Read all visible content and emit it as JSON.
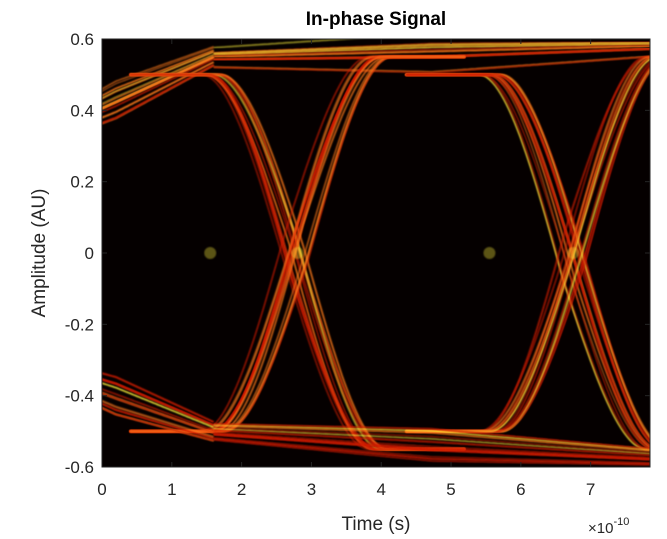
{
  "chart_data": {
    "type": "heatmap",
    "subtype": "eye-diagram density",
    "title": "In-phase Signal",
    "xlabel": "Time (s)",
    "ylabel": "Amplitude (AU)",
    "x_multiplier_base": "×10",
    "x_multiplier_exp": "-10",
    "xlim": [
      0,
      7.85
    ],
    "ylim": [
      -0.6,
      0.6
    ],
    "x_ticks": [
      0,
      1,
      2,
      3,
      4,
      5,
      6,
      7
    ],
    "x_tick_labels": [
      "0",
      "1",
      "2",
      "3",
      "4",
      "5",
      "6",
      "7"
    ],
    "y_ticks": [
      0.6,
      0.4,
      0.2,
      0,
      -0.2,
      -0.4,
      -0.6
    ],
    "y_tick_labels": [
      "0.6",
      "0.4",
      "0.2",
      "0",
      "-0.2",
      "-0.4",
      "-0.6"
    ],
    "grid": false,
    "colormap": [
      "#050000",
      "#7a0000",
      "#d01a00",
      "#ff7a1a",
      "#fff23a"
    ],
    "background_color": "#050000",
    "symbol_period": 4.0,
    "eye_crossings_x": [
      1.55,
      2.8,
      5.55,
      6.75
    ],
    "levels": [
      0.55,
      -0.55
    ],
    "traces": [
      {
        "type": "ramp",
        "t0": -1.2,
        "t1": 1.6,
        "y0": 0.3,
        "y1": 0.55
      },
      {
        "type": "ramp",
        "t0": 1.6,
        "t1": 7.85,
        "y0": 0.55,
        "y1": 0.58
      },
      {
        "type": "fall",
        "center": 2.8,
        "width": 2.4,
        "from": 0.5,
        "to": -0.55
      },
      {
        "type": "rise",
        "center": 2.8,
        "width": 2.4,
        "from": -0.5,
        "to": 0.55
      },
      {
        "type": "fall",
        "center": 6.75,
        "width": 2.4,
        "from": 0.5,
        "to": -0.55
      },
      {
        "type": "rise",
        "center": 6.75,
        "width": 2.4,
        "from": -0.5,
        "to": 0.55
      },
      {
        "type": "ramp",
        "t0": -1.2,
        "t1": 1.6,
        "y0": -0.3,
        "y1": -0.5
      },
      {
        "type": "ramp",
        "t0": 1.6,
        "t1": 7.85,
        "y0": -0.5,
        "y1": -0.57
      },
      {
        "type": "start",
        "t0": 0,
        "t1": 1.0,
        "y0": 0,
        "y1": 0
      }
    ]
  }
}
